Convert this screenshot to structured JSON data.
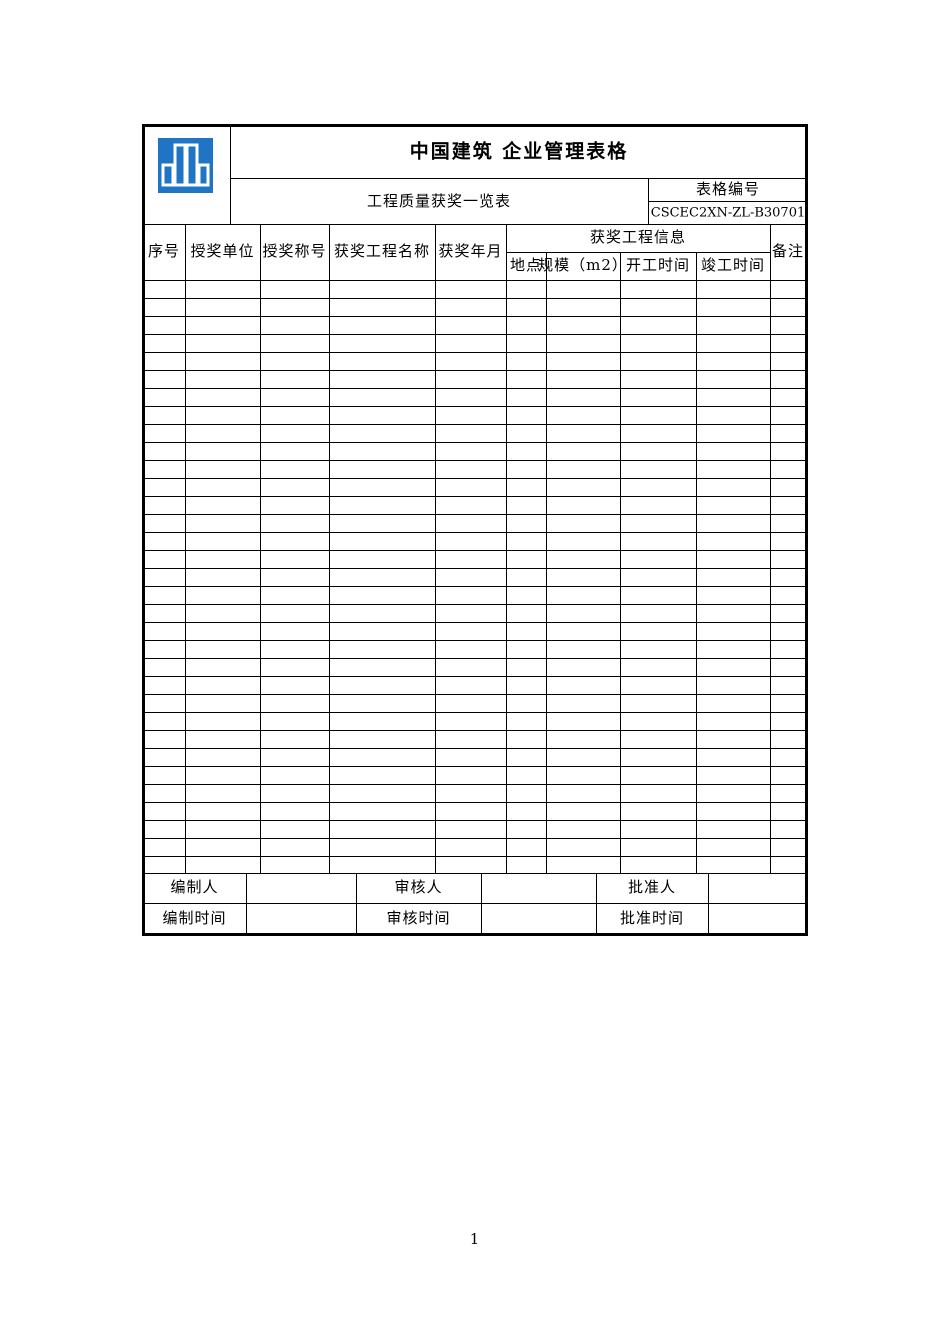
{
  "header": {
    "title": "中国建筑 企业管理表格",
    "subtitle": "工程质量获奖一览表",
    "form_code_label": "表格编号",
    "form_code": "CSCEC2XN-ZL-B30701"
  },
  "table": {
    "columns": [
      "序号",
      "授奖单位",
      "授奖称号",
      "获奖工程名称",
      "获奖年月"
    ],
    "group": {
      "label": "获奖工程信息",
      "columns": [
        "地点",
        "规模（m2）",
        "开工时间",
        "竣工时间"
      ]
    },
    "remark": "备注"
  },
  "footer": {
    "rows": [
      [
        "编制人",
        "审核人",
        "批准人"
      ],
      [
        "编制时间",
        "审核时间",
        "批准时间"
      ]
    ]
  },
  "page_number": 1
}
